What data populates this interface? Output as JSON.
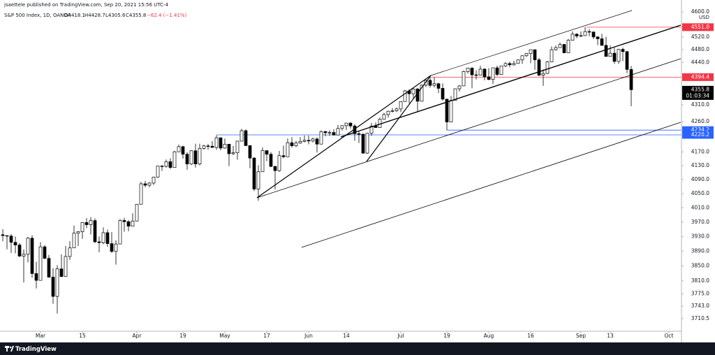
{
  "header": {
    "published": "jsaettele published on TradingView.com, Sep 20, 2021 15:56 UTC-4",
    "symbol": "S&P 500 Index, 1D, OANDA",
    "open": "O4418.1",
    "high": "H4428.7",
    "low": "L4305.6",
    "close": "C4355.8",
    "change": "−62.4 (−1.41%)"
  },
  "footer": {
    "brand": "TradingView"
  },
  "chart_data": {
    "type": "candlestick",
    "currency": "USD",
    "log_scale": true,
    "ylim": [
      3677.6,
      4615.8
    ],
    "yticks": [
      {
        "value": 4600,
        "label": "4600.0"
      },
      {
        "value": 4520,
        "label": "4520.0"
      },
      {
        "value": 4480,
        "label": "4480.0"
      },
      {
        "value": 4440,
        "label": "4440.0"
      },
      {
        "value": 4310,
        "label": "4310.0"
      },
      {
        "value": 4260,
        "label": "4260.0"
      },
      {
        "value": 4170,
        "label": "4170.0"
      },
      {
        "value": 4130,
        "label": "4130.0"
      },
      {
        "value": 4090,
        "label": "4090.0"
      },
      {
        "value": 4050,
        "label": "4050.0"
      },
      {
        "value": 4010,
        "label": "4010.0"
      },
      {
        "value": 3970,
        "label": "3970.0"
      },
      {
        "value": 3930,
        "label": "3930.0"
      },
      {
        "value": 3890,
        "label": "3890.0"
      },
      {
        "value": 3850,
        "label": "3850.0"
      },
      {
        "value": 3810,
        "label": "3810.0"
      },
      {
        "value": 3775,
        "label": "3775.0"
      },
      {
        "value": 3743,
        "label": "3743.0"
      },
      {
        "value": 3710.5,
        "label": "3710.5"
      }
    ],
    "up_color": "#ffffff",
    "down_color": "#000000",
    "outline_color": "#000000",
    "categories": [
      null,
      null,
      null,
      null,
      null,
      null,
      null,
      null,
      null,
      "Mar",
      null,
      null,
      null,
      null,
      null,
      null,
      null,
      null,
      null,
      "15",
      null,
      null,
      null,
      null,
      null,
      null,
      null,
      null,
      null,
      null,
      null,
      null,
      "Apr",
      null,
      null,
      null,
      null,
      null,
      null,
      null,
      null,
      null,
      null,
      "19",
      null,
      null,
      null,
      null,
      null,
      null,
      null,
      null,
      null,
      "May",
      null,
      null,
      null,
      null,
      null,
      null,
      null,
      null,
      null,
      "17",
      null,
      null,
      null,
      null,
      null,
      null,
      null,
      null,
      null,
      "Jun",
      null,
      null,
      null,
      null,
      null,
      null,
      null,
      null,
      "14",
      null,
      null,
      null,
      null,
      null,
      null,
      null,
      null,
      null,
      null,
      null,
      null,
      "Jul",
      null,
      null,
      null,
      null,
      null,
      null,
      null,
      null,
      null,
      null,
      "19",
      null,
      null,
      null,
      null,
      null,
      null,
      null,
      null,
      null,
      "Aug",
      null,
      null,
      null,
      null,
      null,
      null,
      null,
      null,
      null,
      "16",
      null,
      null,
      null,
      null,
      null,
      null,
      null,
      null,
      null,
      null,
      null,
      "Sep",
      null,
      null,
      null,
      null,
      null,
      null,
      "13",
      null,
      null,
      null,
      null,
      null,
      null,
      null,
      null,
      null,
      null,
      null,
      null,
      null,
      "Oct"
    ],
    "open": [
      3935.0,
      3932.6,
      3931.3,
      3914.0,
      3906.7,
      3876.5,
      3881.4,
      3925.4,
      3829.3,
      3811.2,
      3901.8,
      3870.3,
      3819.7,
      3768.5,
      3841.9,
      3821.4,
      3875.4,
      3898.8,
      3939.3,
      3943.3,
      3968.9,
      3962.7,
      3974.1,
      3915.5,
      3913.1,
      3940.6,
      3910.5,
      3889.1,
      3909.5,
      3974.5,
      3971.1,
      3958.6,
      3972.9,
      4019.9,
      4077.9,
      4073.9,
      4080.0,
      4097.2,
      4128.8,
      4128.0,
      4141.6,
      4124.7,
      4170.4,
      4185.5,
      4163.3,
      4134.9,
      4173.4,
      4135.0,
      4180.2,
      4187.6,
      4186.7,
      4183.2,
      4211.5,
      4181.2,
      4192.7,
      4164.7,
      4167.6,
      4201.6,
      4232.6,
      4188.4,
      4152.1,
      4063.0,
      4112.5,
      4173.9,
      4163.3,
      4127.8,
      4115.7,
      4159.1,
      4155.9,
      4197.1,
      4188.1,
      4196.0,
      4200.9,
      4204.1,
      4202.0,
      4208.1,
      4192.9,
      4229.9,
      4226.5,
      4227.3,
      4219.6,
      4239.2,
      4247.4,
      4255.2,
      4246.6,
      4223.7,
      4221.9,
      4166.5,
      4224.8,
      4246.4,
      4241.8,
      4266.5,
      4280.7,
      4290.6,
      4291.8,
      4297.5,
      4319.9,
      4352.3,
      4343.5,
      4358.1,
      4320.8,
      4369.6,
      4384.6,
      4369.2,
      4374.3,
      4360.0,
      4327.2,
      4258.5,
      4323.1,
      4358.7,
      4367.5,
      4411.8,
      4422.3,
      4401.5,
      4400.6,
      4419.2,
      4395.3,
      4387.2,
      4423.2,
      4402.7,
      4429.1,
      4436.5,
      4432.4,
      4436.8,
      4447.7,
      4460.8,
      4468.0,
      4479.7,
      4448.1,
      4400.3,
      4405.8,
      4441.7,
      4479.5,
      4486.2,
      4496.2,
      4470.0,
      4509.4,
      4528.8,
      4522.7,
      4524.1,
      4537.0,
      4535.4,
      4520.0,
      4514.1,
      4493.3,
      4458.6,
      4468.7,
      4443.1,
      4480.7,
      4473.8,
      4418.1,
      null,
      null,
      null,
      null,
      null,
      null,
      null,
      null,
      null
    ],
    "high": [
      3950.4,
      3933.0,
      3937.0,
      3930.0,
      3912.0,
      3895.0,
      3928.7,
      3933.6,
      3861.1,
      3914.5,
      3906.4,
      3879.5,
      3843.7,
      3851.7,
      3881.1,
      3903.8,
      3917.4,
      3960.3,
      3944.9,
      3970.1,
      3981.0,
      3983.9,
      3980.0,
      3930.1,
      3955.3,
      3949.1,
      3942.1,
      3919.5,
      3978.2,
      3981.8,
      3975.0,
      3994.4,
      4020.6,
      4083.4,
      4086.2,
      4083.1,
      4098.2,
      4129.5,
      4131.8,
      4148.0,
      4151.7,
      4173.5,
      4191.3,
      4188.0,
      4169.2,
      4175.0,
      4194.2,
      4194.2,
      4191.3,
      4193.4,
      4201.5,
      4218.8,
      4213.0,
      4209.4,
      4193.5,
      4187.7,
      4202.7,
      4238.0,
      4236.4,
      4190.0,
      4155.0,
      4131.6,
      4183.1,
      4174.0,
      4169.6,
      4130.0,
      4172.8,
      4188.7,
      4209.5,
      4213.4,
      4202.6,
      4213.4,
      4218.4,
      4218.4,
      4212.0,
      4213.0,
      4233.5,
      4232.3,
      4234.1,
      4237.1,
      4249.7,
      4248.4,
      4255.6,
      4257.2,
      4251.9,
      4232.3,
      4225.0,
      4226.2,
      4255.8,
      4256.6,
      4271.3,
      4286.1,
      4292.1,
      4300.5,
      4302.4,
      4320.7,
      4355.4,
      4356.5,
      4361.9,
      4361.3,
      4372.0,
      4386.7,
      4394.4,
      4393.8,
      4376.9,
      4375.1,
      4327.2,
      4336.8,
      4359.0,
      4369.9,
      4415.0,
      4422.7,
      4425.0,
      4415.5,
      4429.9,
      4422.0,
      4422.2,
      4423.8,
      4429.8,
      4429.6,
      4440.8,
      4442.4,
      4445.2,
      4449.4,
      4461.8,
      4468.5,
      4480.3,
      4480.0,
      4454.3,
      4418.6,
      4444.4,
      4489.9,
      4492.8,
      4502.0,
      4498.0,
      4513.3,
      4537.4,
      4531.4,
      4537.1,
      4551.0,
      4545.0,
      4538.0,
      4521.8,
      4529.9,
      4520.5,
      4492.8,
      4485.7,
      4481.9,
      4485.9,
      4476.0,
      4428.7,
      null,
      null,
      null,
      null,
      null,
      null,
      null,
      null,
      null
    ],
    "low": [
      3917.0,
      3895.0,
      3884.9,
      3884.0,
      3874.0,
      3805.6,
      3859.6,
      3817.9,
      3789.5,
      3811.2,
      3868.6,
      3818.0,
      3749.0,
      3723.3,
      3819.3,
      3821.4,
      3866.0,
      3898.8,
      3903.6,
      3923.5,
      3953.4,
      3935.7,
      3912.0,
      3886.8,
      3909.0,
      3901.6,
      3885.0,
      3853.5,
      3909.5,
      3943.3,
      3944.6,
      3958.6,
      3972.9,
      4019.9,
      4068.1,
      4068.3,
      4074.5,
      4095.5,
      4114.8,
      4124.4,
      4120.9,
      4124.7,
      4170.4,
      4150.4,
      4118.4,
      4131.6,
      4124.4,
      4131.0,
      4176.9,
      4176.2,
      4181.8,
      4176.8,
      4174.9,
      4179.4,
      4128.6,
      4160.9,
      4147.3,
      4201.6,
      4188.1,
      4122.3,
      4056.9,
      4029.8,
      4112.5,
      4143.2,
      4125.9,
      4061.4,
      4112.2,
      4151.7,
      4155.9,
      4182.5,
      4184.1,
      4194.0,
      4198.0,
      4192.4,
      4198.0,
      4168.2,
      4192.9,
      4215.7,
      4217.4,
      4218.7,
      4219.6,
      4232.8,
      4234.1,
      4238.4,
      4202.5,
      4196.1,
      4164.4,
      4164.4,
      4217.3,
      4241.4,
      4241.8,
      4266.5,
      4271.5,
      4287.0,
      4287.8,
      4287.9,
      4319.9,
      4314.4,
      4329.8,
      4289.4,
      4320.8,
      4364.0,
      4362.3,
      4362.9,
      4345.5,
      4322.5,
      4234.2,
      4258.5,
      4323.1,
      4350.1,
      4367.5,
      4405.4,
      4360.5,
      4387.0,
      4400.6,
      4384.8,
      4384.8,
      4373.0,
      4397.6,
      4402.7,
      4425.8,
      4424.6,
      4430.0,
      4436.4,
      4435.5,
      4456.9,
      4437.7,
      4416.8,
      4397.6,
      4367.7,
      4404.0,
      4441.7,
      4477.0,
      4486.2,
      4468.4,
      4470.0,
      4509.4,
      4515.8,
      4519.6,
      4524.1,
      4522.0,
      4513.0,
      4493.9,
      4492.1,
      4457.7,
      4458.6,
      4435.5,
      4435.8,
      4443.9,
      4406.8,
      4305.6,
      null,
      null,
      null,
      null,
      null,
      null,
      null,
      null,
      null
    ],
    "close": [
      3932.6,
      3931.3,
      3914.0,
      3906.7,
      3876.5,
      3881.4,
      3925.4,
      3829.3,
      3811.2,
      3901.8,
      3870.3,
      3819.7,
      3768.5,
      3841.9,
      3821.4,
      3875.4,
      3898.8,
      3939.3,
      3943.3,
      3968.9,
      3962.7,
      3974.1,
      3915.5,
      3913.1,
      3940.6,
      3910.5,
      3889.1,
      3909.5,
      3974.5,
      3971.1,
      3958.6,
      3972.9,
      4019.9,
      4077.9,
      4073.9,
      4080.0,
      4097.2,
      4128.8,
      4128.0,
      4141.6,
      4124.7,
      4170.4,
      4185.5,
      4163.3,
      4134.9,
      4173.4,
      4135.0,
      4180.2,
      4187.6,
      4186.7,
      4183.2,
      4211.5,
      4181.2,
      4192.7,
      4164.7,
      4167.6,
      4201.6,
      4232.6,
      4188.4,
      4152.1,
      4063.0,
      4112.5,
      4173.9,
      4163.3,
      4127.8,
      4115.7,
      4159.1,
      4155.9,
      4197.1,
      4188.1,
      4196.0,
      4200.9,
      4204.1,
      4202.0,
      4208.1,
      4192.9,
      4229.9,
      4226.5,
      4227.3,
      4219.6,
      4239.2,
      4247.4,
      4255.2,
      4246.6,
      4223.7,
      4221.9,
      4166.5,
      4224.8,
      4246.4,
      4241.8,
      4266.5,
      4280.7,
      4290.6,
      4291.8,
      4297.5,
      4319.9,
      4352.3,
      4343.5,
      4358.1,
      4320.8,
      4369.6,
      4384.6,
      4369.2,
      4374.3,
      4360.0,
      4327.2,
      4258.5,
      4323.1,
      4358.7,
      4367.5,
      4411.8,
      4422.3,
      4401.5,
      4400.6,
      4419.2,
      4395.3,
      4387.2,
      4423.2,
      4402.7,
      4429.1,
      4436.5,
      4432.4,
      4436.8,
      4447.7,
      4460.8,
      4468.0,
      4479.7,
      4448.1,
      4400.3,
      4405.8,
      4441.7,
      4479.5,
      4486.2,
      4496.2,
      4470.0,
      4509.4,
      4528.8,
      4522.7,
      4524.1,
      4537.0,
      4535.4,
      4520.0,
      4514.1,
      4493.3,
      4458.6,
      4468.7,
      4443.1,
      4480.7,
      4473.8,
      4418.2,
      4355.8,
      null,
      null,
      null,
      null,
      null,
      null,
      null,
      null,
      null
    ],
    "levels": [
      {
        "value": 4551.0,
        "label": "4551.0",
        "color": "#f23645"
      },
      {
        "value": 4394.4,
        "label": "4394.4",
        "color": "#f23645"
      },
      {
        "value": 4234.2,
        "label": "4234.2",
        "color": "#2962ff"
      },
      {
        "value": 4220.2,
        "label": "4220.2",
        "color": "#2962ff"
      }
    ],
    "last_price": {
      "value": 4355.8,
      "label": "4355.8",
      "countdown": "01:03:34",
      "color": "#000000"
    }
  }
}
